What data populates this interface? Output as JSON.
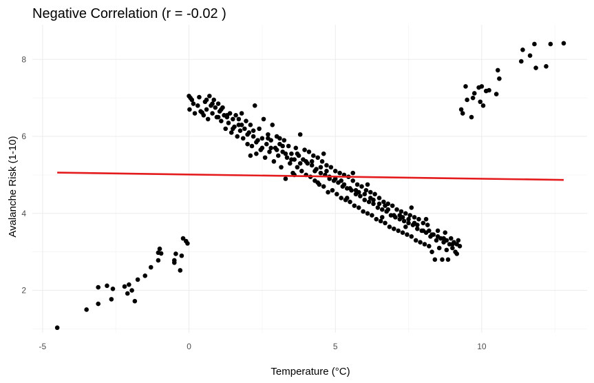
{
  "chart_data": {
    "type": "scatter",
    "title": "Negative Correlation (r = -0.02 )",
    "xlabel": "Temperature (°C)",
    "ylabel": "Avalanche Risk (1-10)",
    "xlim": [
      -5.35,
      13.6
    ],
    "ylim": [
      0.9,
      8.9
    ],
    "xticks": [
      -5,
      0,
      5,
      10
    ],
    "yticks": [
      2,
      4,
      6,
      8
    ],
    "grid": true,
    "legend": "none",
    "point_color": "#000000",
    "fit_color": "#e41a1c",
    "fit_line": {
      "x": [
        -4.5,
        12.8
      ],
      "y": [
        5.06,
        4.87
      ]
    },
    "points": [
      [
        -4.5,
        1.03
      ],
      [
        -3.5,
        1.5
      ],
      [
        -3.1,
        1.65
      ],
      [
        -3.1,
        2.08
      ],
      [
        -2.8,
        2.12
      ],
      [
        -2.65,
        1.77
      ],
      [
        -2.6,
        2.04
      ],
      [
        -2.2,
        2.1
      ],
      [
        -2.05,
        2.15
      ],
      [
        -2.1,
        1.92
      ],
      [
        -1.95,
        2.0
      ],
      [
        -1.85,
        1.72
      ],
      [
        -1.75,
        2.28
      ],
      [
        -1.5,
        2.38
      ],
      [
        -1.3,
        2.6
      ],
      [
        -1.05,
        2.78
      ],
      [
        -1.05,
        2.98
      ],
      [
        -1.0,
        3.08
      ],
      [
        -0.95,
        2.96
      ],
      [
        -0.5,
        2.78
      ],
      [
        -0.45,
        2.95
      ],
      [
        -0.5,
        2.72
      ],
      [
        -0.3,
        2.52
      ],
      [
        -0.25,
        2.9
      ],
      [
        -0.2,
        3.35
      ],
      [
        -0.1,
        3.28
      ],
      [
        -0.05,
        3.22
      ],
      [
        9.3,
        6.7
      ],
      [
        9.35,
        6.6
      ],
      [
        9.45,
        7.3
      ],
      [
        9.5,
        6.95
      ],
      [
        9.65,
        6.5
      ],
      [
        9.7,
        7.0
      ],
      [
        9.75,
        7.12
      ],
      [
        9.9,
        7.27
      ],
      [
        10.0,
        7.3
      ],
      [
        9.95,
        6.9
      ],
      [
        10.05,
        6.8
      ],
      [
        10.15,
        7.18
      ],
      [
        10.25,
        7.2
      ],
      [
        10.5,
        7.1
      ],
      [
        10.55,
        7.72
      ],
      [
        10.6,
        7.5
      ],
      [
        11.35,
        7.95
      ],
      [
        11.4,
        8.25
      ],
      [
        11.65,
        8.1
      ],
      [
        11.8,
        8.4
      ],
      [
        11.85,
        7.78
      ],
      [
        12.2,
        7.82
      ],
      [
        12.35,
        8.4
      ],
      [
        12.8,
        8.42
      ],
      [
        0.0,
        7.05
      ],
      [
        0.02,
        6.7
      ],
      [
        0.05,
        7.0
      ],
      [
        0.1,
        6.95
      ],
      [
        0.2,
        6.6
      ],
      [
        0.3,
        6.8
      ],
      [
        0.35,
        7.02
      ],
      [
        0.45,
        6.62
      ],
      [
        0.5,
        6.55
      ],
      [
        0.55,
        6.9
      ],
      [
        0.6,
        6.7
      ],
      [
        0.65,
        6.45
      ],
      [
        0.7,
        7.05
      ],
      [
        0.75,
        6.8
      ],
      [
        0.8,
        6.6
      ],
      [
        0.85,
        6.95
      ],
      [
        0.9,
        6.75
      ],
      [
        0.95,
        6.5
      ],
      [
        1.0,
        6.85
      ],
      [
        1.05,
        6.65
      ],
      [
        1.1,
        6.4
      ],
      [
        1.15,
        6.75
      ],
      [
        1.2,
        6.55
      ],
      [
        1.25,
        6.2
      ],
      [
        1.3,
        6.5
      ],
      [
        1.35,
        6.35
      ],
      [
        1.4,
        6.6
      ],
      [
        1.45,
        6.1
      ],
      [
        1.5,
        6.45
      ],
      [
        1.55,
        6.25
      ],
      [
        1.6,
        6.55
      ],
      [
        1.65,
        6.0
      ],
      [
        1.7,
        6.3
      ],
      [
        1.75,
        6.15
      ],
      [
        1.8,
        6.6
      ],
      [
        1.85,
        5.95
      ],
      [
        1.9,
        6.2
      ],
      [
        1.95,
        6.4
      ],
      [
        2.0,
        5.8
      ],
      [
        2.05,
        6.1
      ],
      [
        2.1,
        6.3
      ],
      [
        2.15,
        5.75
      ],
      [
        2.2,
        6.0
      ],
      [
        2.25,
        6.8
      ],
      [
        2.3,
        5.55
      ],
      [
        2.35,
        5.9
      ],
      [
        2.4,
        6.2
      ],
      [
        2.45,
        5.65
      ],
      [
        2.5,
        5.95
      ],
      [
        2.55,
        6.45
      ],
      [
        2.6,
        5.45
      ],
      [
        2.65,
        5.8
      ],
      [
        2.7,
        6.05
      ],
      [
        2.75,
        5.6
      ],
      [
        2.8,
        5.9
      ],
      [
        2.85,
        6.3
      ],
      [
        2.9,
        5.35
      ],
      [
        2.95,
        5.7
      ],
      [
        3.0,
        6.0
      ],
      [
        3.05,
        5.5
      ],
      [
        3.1,
        5.8
      ],
      [
        3.15,
        5.2
      ],
      [
        3.2,
        5.6
      ],
      [
        3.25,
        5.9
      ],
      [
        3.3,
        4.9
      ],
      [
        3.35,
        5.45
      ],
      [
        3.4,
        5.75
      ],
      [
        3.45,
        5.3
      ],
      [
        3.5,
        5.55
      ],
      [
        3.55,
        5.05
      ],
      [
        3.6,
        5.4
      ],
      [
        3.65,
        5.7
      ],
      [
        3.7,
        5.2
      ],
      [
        3.75,
        5.5
      ],
      [
        3.8,
        6.05
      ],
      [
        3.85,
        5.1
      ],
      [
        3.9,
        5.4
      ],
      [
        3.95,
        5.65
      ],
      [
        4.0,
        5.0
      ],
      [
        4.05,
        5.3
      ],
      [
        4.1,
        5.6
      ],
      [
        4.15,
        4.95
      ],
      [
        4.2,
        5.25
      ],
      [
        4.25,
        5.5
      ],
      [
        4.3,
        4.85
      ],
      [
        4.35,
        5.15
      ],
      [
        4.4,
        5.45
      ],
      [
        4.45,
        4.75
      ],
      [
        4.5,
        5.05
      ],
      [
        4.55,
        5.35
      ],
      [
        4.6,
        4.7
      ],
      [
        4.65,
        5.0
      ],
      [
        4.7,
        5.25
      ],
      [
        4.75,
        4.55
      ],
      [
        4.8,
        4.9
      ],
      [
        4.85,
        5.2
      ],
      [
        4.9,
        4.6
      ],
      [
        4.95,
        4.85
      ],
      [
        5.0,
        5.1
      ],
      [
        5.05,
        4.5
      ],
      [
        5.1,
        4.8
      ],
      [
        5.15,
        5.05
      ],
      [
        5.2,
        4.4
      ],
      [
        5.25,
        4.7
      ],
      [
        5.3,
        5.0
      ],
      [
        5.35,
        4.35
      ],
      [
        5.4,
        4.65
      ],
      [
        5.45,
        4.95
      ],
      [
        5.5,
        4.3
      ],
      [
        5.55,
        4.6
      ],
      [
        5.6,
        4.85
      ],
      [
        5.65,
        4.2
      ],
      [
        5.7,
        4.5
      ],
      [
        5.75,
        4.75
      ],
      [
        5.8,
        4.15
      ],
      [
        5.85,
        4.45
      ],
      [
        5.9,
        4.7
      ],
      [
        5.95,
        4.05
      ],
      [
        6.0,
        4.35
      ],
      [
        6.05,
        4.6
      ],
      [
        6.1,
        4.0
      ],
      [
        6.15,
        4.3
      ],
      [
        6.2,
        4.55
      ],
      [
        6.25,
        3.95
      ],
      [
        6.3,
        4.25
      ],
      [
        6.35,
        4.5
      ],
      [
        6.4,
        3.85
      ],
      [
        6.45,
        4.15
      ],
      [
        6.5,
        4.4
      ],
      [
        6.55,
        3.8
      ],
      [
        6.6,
        4.1
      ],
      [
        6.65,
        4.3
      ],
      [
        6.7,
        3.75
      ],
      [
        6.75,
        4.05
      ],
      [
        6.8,
        4.25
      ],
      [
        6.85,
        3.65
      ],
      [
        6.9,
        3.95
      ],
      [
        6.95,
        4.2
      ],
      [
        7.0,
        3.6
      ],
      [
        7.05,
        3.9
      ],
      [
        7.1,
        4.1
      ],
      [
        7.15,
        3.55
      ],
      [
        7.2,
        3.85
      ],
      [
        7.25,
        4.05
      ],
      [
        7.3,
        3.5
      ],
      [
        7.35,
        3.8
      ],
      [
        7.4,
        4.0
      ],
      [
        7.45,
        3.45
      ],
      [
        7.5,
        3.75
      ],
      [
        7.55,
        3.95
      ],
      [
        7.6,
        3.4
      ],
      [
        7.65,
        3.7
      ],
      [
        7.7,
        3.9
      ],
      [
        7.75,
        3.3
      ],
      [
        7.8,
        3.6
      ],
      [
        7.85,
        3.85
      ],
      [
        7.9,
        3.25
      ],
      [
        7.95,
        3.55
      ],
      [
        8.0,
        3.75
      ],
      [
        8.05,
        3.2
      ],
      [
        8.1,
        3.5
      ],
      [
        8.15,
        3.7
      ],
      [
        8.2,
        3.15
      ],
      [
        8.25,
        3.4
      ],
      [
        8.3,
        3.0
      ],
      [
        8.35,
        3.45
      ],
      [
        8.4,
        2.8
      ],
      [
        8.45,
        3.3
      ],
      [
        8.5,
        3.55
      ],
      [
        8.55,
        3.1
      ],
      [
        8.6,
        3.35
      ],
      [
        8.65,
        2.8
      ],
      [
        8.7,
        3.25
      ],
      [
        8.75,
        3.5
      ],
      [
        8.8,
        3.05
      ],
      [
        8.85,
        2.8
      ],
      [
        8.9,
        3.2
      ],
      [
        8.95,
        3.35
      ],
      [
        9.0,
        3.1
      ],
      [
        9.05,
        3.25
      ],
      [
        9.1,
        3.0
      ],
      [
        9.15,
        3.2
      ],
      [
        9.2,
        3.3
      ],
      [
        9.25,
        3.15
      ],
      [
        9.15,
        2.95
      ],
      [
        0.4,
        6.65
      ],
      [
        1.0,
        6.5
      ],
      [
        1.5,
        6.2
      ],
      [
        2.0,
        6.05
      ],
      [
        2.5,
        5.7
      ],
      [
        3.0,
        5.65
      ],
      [
        3.5,
        5.4
      ],
      [
        4.0,
        5.35
      ],
      [
        4.5,
        5.2
      ],
      [
        5.0,
        4.9
      ],
      [
        5.5,
        4.65
      ],
      [
        6.0,
        4.5
      ],
      [
        6.5,
        4.25
      ],
      [
        7.0,
        3.95
      ],
      [
        7.5,
        3.85
      ],
      [
        8.0,
        3.55
      ],
      [
        8.5,
        3.4
      ],
      [
        9.0,
        3.2
      ],
      [
        0.8,
        6.85
      ],
      [
        1.3,
        6.55
      ],
      [
        1.8,
        6.3
      ],
      [
        2.3,
        5.85
      ],
      [
        2.8,
        5.7
      ],
      [
        3.3,
        5.55
      ],
      [
        3.8,
        5.3
      ],
      [
        4.3,
        5.1
      ],
      [
        4.8,
        4.95
      ],
      [
        5.3,
        4.75
      ],
      [
        5.8,
        4.55
      ],
      [
        6.3,
        4.35
      ],
      [
        6.8,
        4.1
      ],
      [
        7.3,
        3.9
      ],
      [
        7.8,
        3.7
      ],
      [
        8.3,
        3.45
      ],
      [
        8.8,
        3.3
      ],
      [
        0.15,
        6.85
      ],
      [
        0.6,
        6.95
      ],
      [
        1.1,
        6.7
      ],
      [
        1.7,
        6.45
      ],
      [
        2.2,
        6.15
      ],
      [
        2.7,
        5.95
      ],
      [
        3.2,
        5.75
      ],
      [
        3.7,
        5.55
      ],
      [
        4.2,
        5.35
      ],
      [
        4.7,
        5.1
      ],
      [
        5.2,
        4.85
      ],
      [
        5.7,
        4.6
      ],
      [
        6.2,
        4.4
      ],
      [
        6.7,
        4.2
      ],
      [
        7.2,
        3.95
      ],
      [
        7.7,
        3.75
      ],
      [
        8.2,
        3.55
      ],
      [
        8.7,
        3.35
      ],
      [
        3.1,
        5.95
      ],
      [
        4.6,
        5.55
      ],
      [
        5.6,
        5.05
      ],
      [
        6.1,
        4.75
      ],
      [
        7.6,
        4.15
      ],
      [
        8.1,
        3.85
      ],
      [
        2.1,
        5.5
      ],
      [
        3.6,
        5.0
      ],
      [
        4.4,
        4.8
      ],
      [
        5.4,
        4.4
      ],
      [
        6.6,
        3.9
      ],
      [
        7.4,
        3.65
      ]
    ]
  }
}
